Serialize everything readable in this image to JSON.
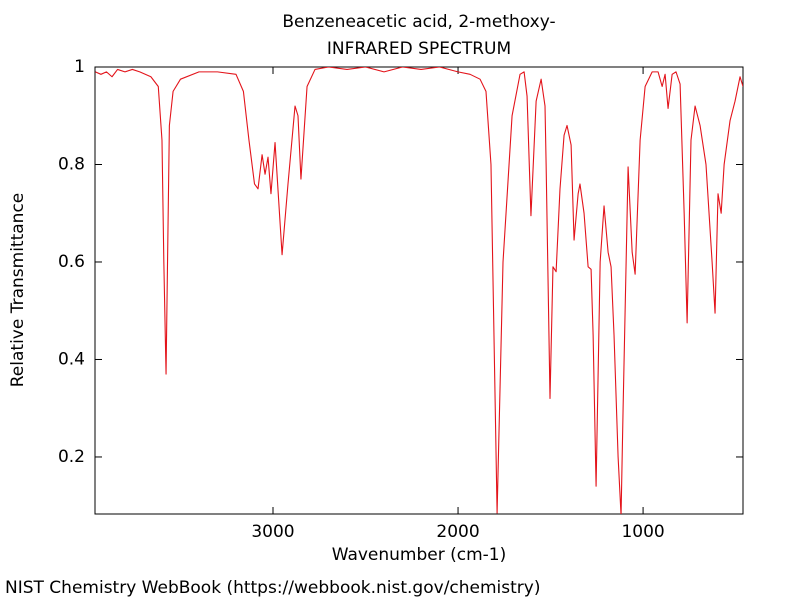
{
  "chart_data": {
    "type": "line",
    "title": "Benzeneacetic acid, 2-methoxy-",
    "subtitle": "INFRARED SPECTRUM",
    "xlabel": "Wavenumber (cm-1)",
    "ylabel": "Relative Transmittance",
    "source": "NIST Chemistry WebBook (https://webbook.nist.gov/chemistry)",
    "x": [
      3960,
      3930,
      3900,
      3870,
      3840,
      3800,
      3760,
      3720,
      3660,
      3620,
      3600,
      3590,
      3578,
      3570,
      3560,
      3540,
      3500,
      3400,
      3300,
      3200,
      3160,
      3130,
      3100,
      3081,
      3059,
      3043,
      3027,
      3011,
      2989,
      2951,
      2919,
      2881,
      2865,
      2849,
      2816,
      2773,
      2700,
      2600,
      2500,
      2400,
      2300,
      2200,
      2100,
      2000,
      1935,
      1881,
      1849,
      1822,
      1789,
      1757,
      1708,
      1665,
      1643,
      1627,
      1606,
      1578,
      1551,
      1530,
      1524,
      1503,
      1487,
      1470,
      1449,
      1427,
      1411,
      1389,
      1373,
      1351,
      1341,
      1319,
      1297,
      1281,
      1270,
      1254,
      1232,
      1211,
      1189,
      1173,
      1157,
      1135,
      1119,
      1108,
      1081,
      1059,
      1043,
      1016,
      989,
      951,
      919,
      897,
      881,
      865,
      843,
      822,
      800,
      778,
      762,
      741,
      719,
      692,
      660,
      627,
      611,
      595,
      578,
      562,
      530,
      503,
      476,
      460
    ],
    "series": [
      {
        "name": "Benzeneacetic acid, 2-methoxy-",
        "color": "#e3141b",
        "values": [
          0.99,
          0.985,
          0.99,
          0.98,
          0.995,
          0.99,
          0.995,
          0.99,
          0.98,
          0.96,
          0.85,
          0.6,
          0.37,
          0.6,
          0.88,
          0.95,
          0.975,
          0.99,
          0.99,
          0.985,
          0.95,
          0.85,
          0.76,
          0.75,
          0.82,
          0.78,
          0.815,
          0.74,
          0.845,
          0.615,
          0.76,
          0.92,
          0.9,
          0.77,
          0.96,
          0.995,
          1.0,
          0.995,
          1.0,
          0.99,
          1.0,
          0.995,
          1.0,
          0.99,
          0.985,
          0.975,
          0.95,
          0.8,
          0.085,
          0.6,
          0.9,
          0.985,
          0.99,
          0.94,
          0.695,
          0.93,
          0.975,
          0.92,
          0.8,
          0.32,
          0.59,
          0.58,
          0.75,
          0.86,
          0.88,
          0.84,
          0.645,
          0.74,
          0.76,
          0.7,
          0.59,
          0.585,
          0.45,
          0.14,
          0.6,
          0.715,
          0.62,
          0.59,
          0.45,
          0.2,
          0.08,
          0.3,
          0.795,
          0.62,
          0.575,
          0.85,
          0.96,
          0.99,
          0.99,
          0.96,
          0.985,
          0.915,
          0.985,
          0.99,
          0.965,
          0.7,
          0.475,
          0.85,
          0.92,
          0.88,
          0.8,
          0.6,
          0.495,
          0.74,
          0.7,
          0.8,
          0.89,
          0.93,
          0.98,
          0.96
        ]
      }
    ],
    "xlim": [
      3962,
      460
    ],
    "ylim": [
      0.083,
      1.0
    ],
    "xticks": [
      3000,
      2000,
      1000
    ],
    "yticks": [
      0.2,
      0.4,
      0.6,
      0.8,
      1
    ],
    "grid": false
  }
}
